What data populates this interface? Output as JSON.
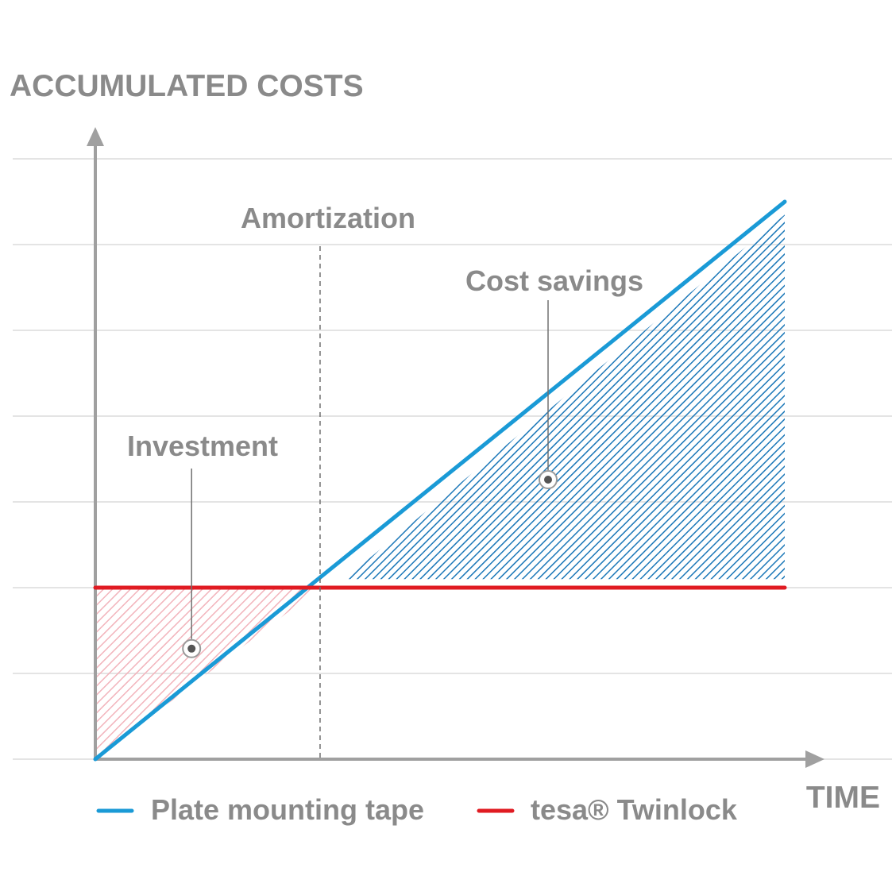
{
  "chart_data": {
    "type": "line",
    "ylabel": "ACCUMULATED COSTS",
    "xlabel": "TIME",
    "grid": true,
    "legend_placement": "bottom",
    "x": [
      0,
      3,
      10
    ],
    "ylim": [
      0,
      7
    ],
    "xlim": [
      0,
      10
    ],
    "series": [
      {
        "name": "Plate mounting tape",
        "color": "#1a9ad6",
        "points": [
          [
            0,
            0
          ],
          [
            10,
            6.5
          ]
        ]
      },
      {
        "name": "tesa® Twinlock",
        "color": "#e01b22",
        "points": [
          [
            0,
            2
          ],
          [
            10,
            2
          ]
        ]
      }
    ],
    "annotations": [
      {
        "text": "Amortization",
        "kind": "vertical-line",
        "x": 3.26
      },
      {
        "text": "Investment",
        "kind": "region",
        "x": 1.5,
        "y": 1.4
      },
      {
        "text": "Cost savings",
        "kind": "region",
        "x": 6.6,
        "y": 3.2
      }
    ],
    "colors": {
      "axis": "#a0a0a0",
      "grid": "#dcdcdc",
      "label": "#8a8a8a",
      "investment_fill": "#f4b8bf",
      "savings_fill": "#1a77b8"
    }
  }
}
